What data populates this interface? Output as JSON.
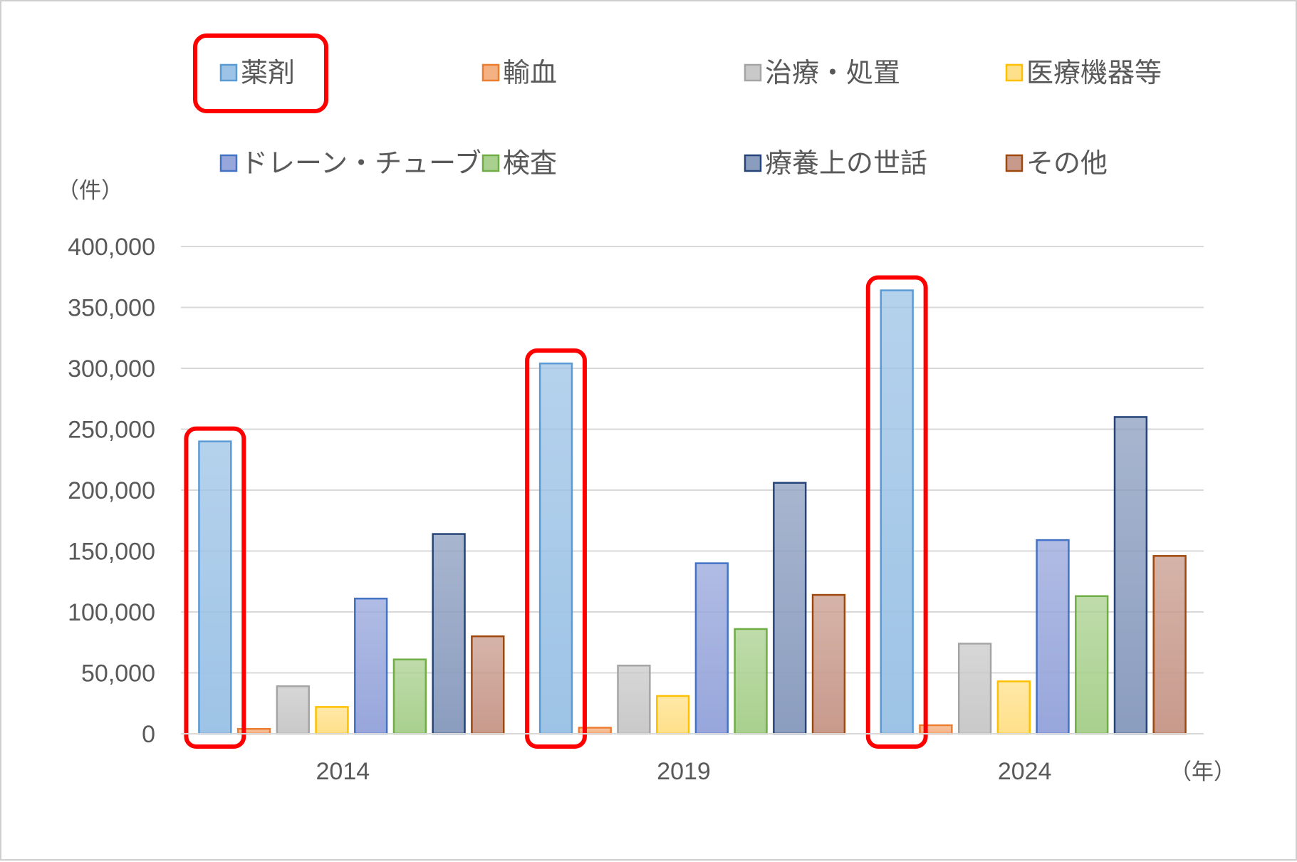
{
  "chart_data": {
    "type": "bar",
    "categories": [
      "2014",
      "2019",
      "2024"
    ],
    "series": [
      {
        "name": "薬剤",
        "values": [
          240000,
          304000,
          364000
        ],
        "fill": "#9dc3e6",
        "stroke": "#5b9bd5",
        "highlighted": true
      },
      {
        "name": "輸血",
        "values": [
          4000,
          5000,
          7000
        ],
        "fill": "#f4b183",
        "stroke": "#ed7d31"
      },
      {
        "name": "治療・処置",
        "values": [
          39000,
          56000,
          74000
        ],
        "fill": "#c9c9c9",
        "stroke": "#a5a5a5"
      },
      {
        "name": "医療機器等",
        "values": [
          22000,
          31000,
          43000
        ],
        "fill": "#ffe08a",
        "stroke": "#ffc000"
      },
      {
        "name": "ドレーン・チューブ",
        "values": [
          111000,
          140000,
          159000
        ],
        "fill": "#97a6db",
        "stroke": "#4472c4"
      },
      {
        "name": "検査",
        "values": [
          61000,
          86000,
          113000
        ],
        "fill": "#a9d08e",
        "stroke": "#70ad47"
      },
      {
        "name": "療養上の世話",
        "values": [
          164000,
          206000,
          260000
        ],
        "fill": "#8b9dbf",
        "stroke": "#264478"
      },
      {
        "name": "その他",
        "values": [
          80000,
          114000,
          146000
        ],
        "fill": "#c89a8c",
        "stroke": "#9e480e"
      }
    ],
    "ylim": [
      0,
      400000
    ],
    "yticks": [
      0,
      50000,
      100000,
      150000,
      200000,
      250000,
      300000,
      350000,
      400000
    ],
    "ytick_labels": [
      "0",
      "50,000",
      "100,000",
      "150,000",
      "200,000",
      "250,000",
      "300,000",
      "350,000",
      "400,000"
    ],
    "ylabel": "（件）",
    "xlabel": "（年）",
    "grid": true,
    "legend_position": "top",
    "highlight_color": "#ff0000"
  }
}
